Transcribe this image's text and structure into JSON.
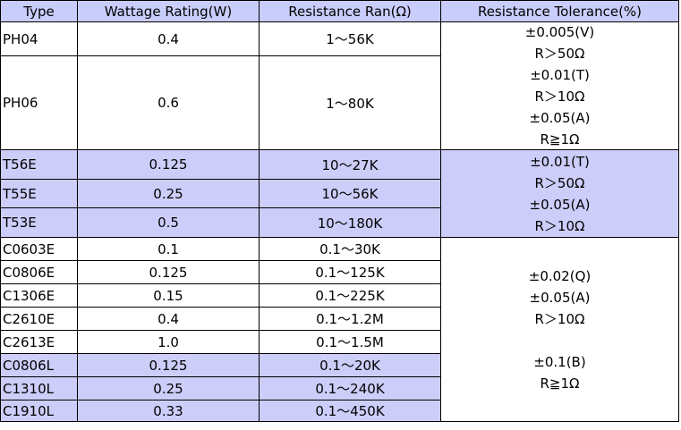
{
  "headers": [
    "Type",
    "Wattage Rating(W)",
    "Resistance Ran(Ω)",
    "Resistance Tolerance(%)"
  ],
  "rows": [
    {
      "type": "PH04",
      "wattage": "0.4",
      "range": "1～56K"
    },
    {
      "type": "PH06",
      "wattage": "0.6",
      "range": "1～80K"
    },
    {
      "type": "T56E",
      "wattage": "0.125",
      "range": "10～27K"
    },
    {
      "type": "T55E",
      "wattage": "0.25",
      "range": "10～56K"
    },
    {
      "type": "T53E",
      "wattage": "0.5",
      "range": "10～180K"
    },
    {
      "type": "C0603E",
      "wattage": "0.1",
      "range": "0.1～30K"
    },
    {
      "type": "C0806E",
      "wattage": "0.125",
      "range": "0.1～125K"
    },
    {
      "type": "C1306E",
      "wattage": "0.15",
      "range": "0.1～225K"
    },
    {
      "type": "C2610E",
      "wattage": "0.4",
      "range": "0.1～1.2M"
    },
    {
      "type": "C2613E",
      "wattage": "1.0",
      "range": "0.1～1.5M"
    },
    {
      "type": "C0806L",
      "wattage": "0.125",
      "range": "0.1～20K"
    },
    {
      "type": "C1310L",
      "wattage": "0.25",
      "range": "0.1～240K"
    },
    {
      "type": "C1910L",
      "wattage": "0.33",
      "range": "0.1～450K"
    }
  ],
  "tolerance_groups": [
    {
      "lines": [
        "±0.005(V)",
        "R＞50Ω",
        "±0.01(T)",
        "R＞10Ω",
        "±0.05(A)",
        "R≧1Ω"
      ]
    },
    {
      "lines": [
        "±0.01(T)",
        "R＞50Ω",
        "±0.05(A)",
        "R＞10Ω"
      ]
    },
    {
      "lines": [
        "±0.02(Q)",
        "±0.05(A)",
        "R＞10Ω",
        "",
        "±0.1(B)",
        "R≧1Ω"
      ]
    }
  ],
  "colors": {
    "header_bg": "#c9cdfb",
    "highlight_bg": "#cdcdfa",
    "border": "#000000"
  }
}
